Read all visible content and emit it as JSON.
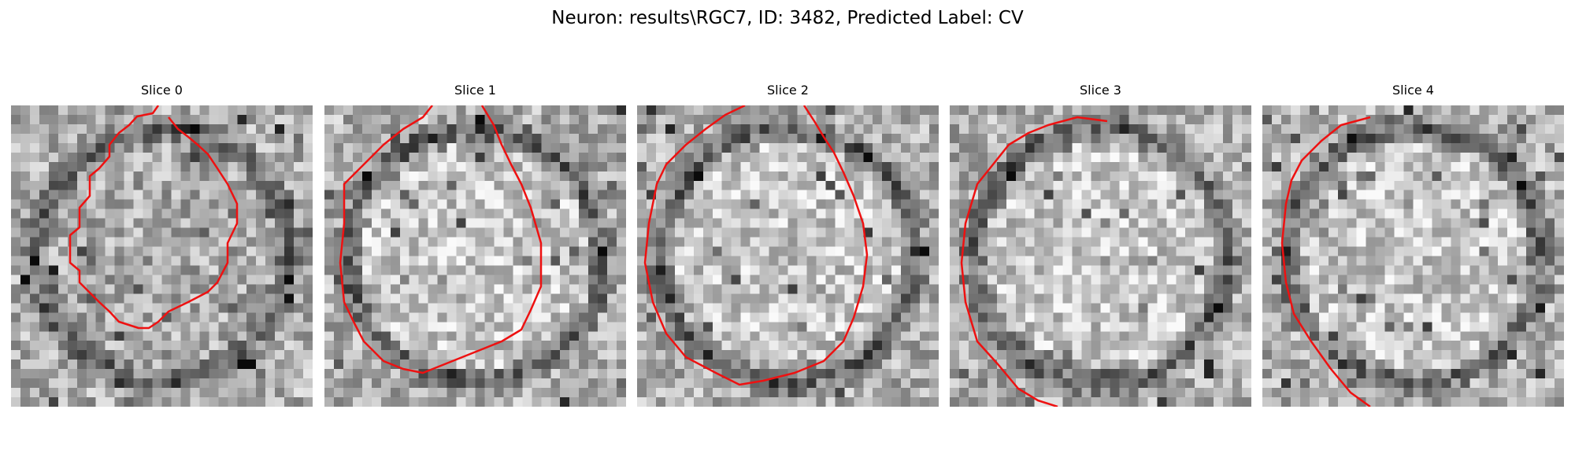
{
  "figure": {
    "title": "Neuron: results\\RGC7, ID: 3482, Predicted Label: CV"
  },
  "contour_color": "#ee1111",
  "panels": [
    {
      "title": "Slice 0",
      "seed": 11,
      "bright_inside": false,
      "contour": [
        [
          187,
          0
        ],
        [
          180,
          10
        ],
        [
          160,
          14
        ],
        [
          150,
          25
        ],
        [
          137,
          35
        ],
        [
          125,
          50
        ],
        [
          125,
          65
        ],
        [
          112,
          80
        ],
        [
          100,
          90
        ],
        [
          100,
          115
        ],
        [
          87,
          130
        ],
        [
          87,
          155
        ],
        [
          75,
          165
        ],
        [
          75,
          200
        ],
        [
          87,
          210
        ],
        [
          87,
          225
        ],
        [
          112,
          250
        ],
        [
          125,
          262
        ],
        [
          137,
          275
        ],
        [
          162,
          283
        ],
        [
          175,
          283
        ],
        [
          187,
          275
        ],
        [
          200,
          262
        ],
        [
          225,
          250
        ],
        [
          250,
          237
        ],
        [
          262,
          225
        ],
        [
          275,
          200
        ],
        [
          275,
          175
        ],
        [
          287,
          150
        ],
        [
          287,
          125
        ],
        [
          275,
          100
        ],
        [
          262,
          80
        ],
        [
          250,
          62
        ],
        [
          237,
          50
        ],
        [
          225,
          40
        ],
        [
          212,
          30
        ],
        [
          200,
          15
        ]
      ]
    },
    {
      "title": "Slice 1",
      "seed": 23,
      "bright_inside": true,
      "contour": [
        [
          137,
          0
        ],
        [
          125,
          15
        ],
        [
          100,
          30
        ],
        [
          75,
          50
        ],
        [
          50,
          75
        ],
        [
          25,
          100
        ],
        [
          25,
          150
        ],
        [
          20,
          200
        ],
        [
          25,
          250
        ],
        [
          37,
          275
        ],
        [
          50,
          300
        ],
        [
          75,
          325
        ],
        [
          100,
          335
        ],
        [
          125,
          340
        ],
        [
          150,
          330
        ],
        [
          175,
          320
        ],
        [
          200,
          310
        ],
        [
          225,
          300
        ],
        [
          250,
          285
        ],
        [
          262,
          260
        ],
        [
          275,
          230
        ],
        [
          275,
          175
        ],
        [
          262,
          130
        ],
        [
          250,
          100
        ],
        [
          237,
          75
        ],
        [
          225,
          50
        ],
        [
          215,
          25
        ],
        [
          200,
          0
        ]
      ]
    },
    {
      "title": "Slice 2",
      "seed": 37,
      "bright_inside": true,
      "contour": [
        [
          137,
          0
        ],
        [
          112,
          12
        ],
        [
          87,
          30
        ],
        [
          62,
          50
        ],
        [
          37,
          75
        ],
        [
          25,
          100
        ],
        [
          15,
          150
        ],
        [
          10,
          200
        ],
        [
          20,
          250
        ],
        [
          37,
          290
        ],
        [
          62,
          320
        ],
        [
          100,
          340
        ],
        [
          130,
          355
        ],
        [
          160,
          350
        ],
        [
          200,
          340
        ],
        [
          237,
          325
        ],
        [
          262,
          300
        ],
        [
          275,
          270
        ],
        [
          287,
          230
        ],
        [
          292,
          190
        ],
        [
          287,
          150
        ],
        [
          275,
          115
        ],
        [
          262,
          85
        ],
        [
          250,
          60
        ],
        [
          237,
          40
        ],
        [
          225,
          20
        ],
        [
          212,
          0
        ]
      ]
    },
    {
      "title": "Slice 3",
      "seed": 53,
      "bright_inside": true,
      "contour": [
        [
          200,
          20
        ],
        [
          162,
          15
        ],
        [
          125,
          25
        ],
        [
          100,
          35
        ],
        [
          75,
          50
        ],
        [
          55,
          75
        ],
        [
          35,
          100
        ],
        [
          20,
          150
        ],
        [
          15,
          200
        ],
        [
          20,
          250
        ],
        [
          35,
          300
        ],
        [
          62,
          330
        ],
        [
          87,
          360
        ],
        [
          112,
          375
        ],
        [
          137,
          383
        ]
      ]
    },
    {
      "title": "Slice 4",
      "seed": 71,
      "bright_inside": true,
      "contour": [
        [
          137,
          15
        ],
        [
          100,
          25
        ],
        [
          75,
          45
        ],
        [
          50,
          70
        ],
        [
          37,
          95
        ],
        [
          30,
          125
        ],
        [
          25,
          175
        ],
        [
          30,
          225
        ],
        [
          40,
          265
        ],
        [
          62,
          300
        ],
        [
          87,
          335
        ],
        [
          112,
          365
        ],
        [
          137,
          383
        ]
      ]
    }
  ]
}
